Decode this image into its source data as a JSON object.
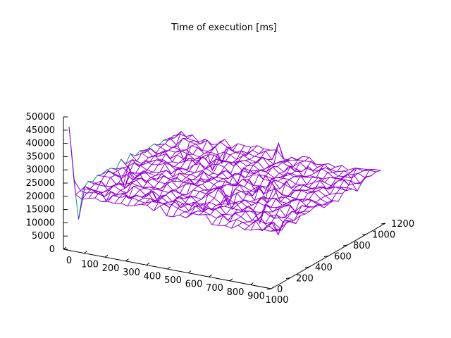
{
  "chart_data": {
    "type": "surface3d",
    "title": "Time of execution [ms]",
    "x_ticks": [
      "0",
      "100",
      "200",
      "300",
      "400",
      "500",
      "600",
      "700",
      "800",
      "900",
      "1000"
    ],
    "y_ticks": [
      "0",
      "200",
      "400",
      "600",
      "800",
      "1000",
      "1200"
    ],
    "z_ticks": [
      "0",
      "5000",
      "10000",
      "15000",
      "20000",
      "25000",
      "30000",
      "35000",
      "40000",
      "45000",
      "50000"
    ],
    "xlim": [
      0,
      1000
    ],
    "ylim": [
      0,
      1200
    ],
    "zlim": [
      0,
      50000
    ],
    "surface_level": 20000,
    "spike_near_origin": 45000,
    "grid_x_count": 32,
    "grid_y_count": 22,
    "colors": {
      "surface": "#9400d3",
      "edge": "#009e73",
      "axis": "#000000"
    }
  }
}
